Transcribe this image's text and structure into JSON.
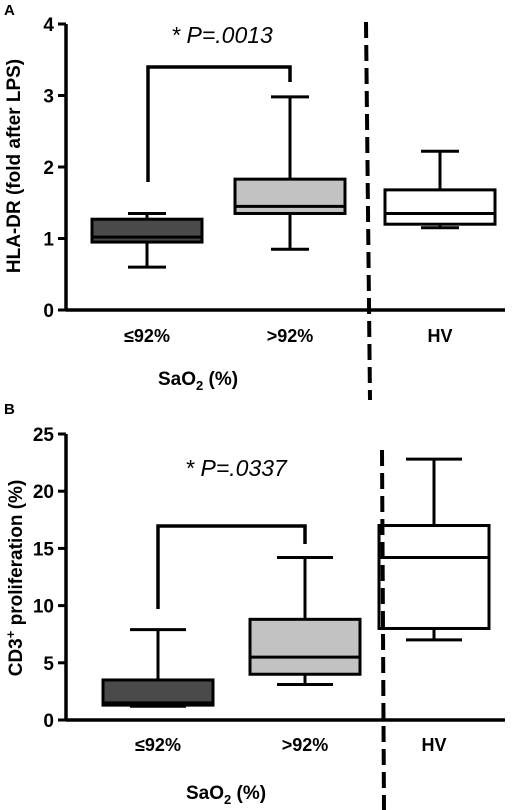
{
  "chart_data": [
    {
      "type": "box",
      "panel_label": "A",
      "ylabel": "HLA-DR (fold after LPS)",
      "xlabel": "SaO2 (%)",
      "ylim": [
        0,
        4
      ],
      "yticks": [
        "0",
        "1",
        "2",
        "3",
        "4"
      ],
      "categories": [
        "≤92%",
        ">92%",
        "HV"
      ],
      "annotation": "* P=.0013",
      "boxes": [
        {
          "category": "≤92%",
          "fill": "#4a4a4a",
          "min": 0.6,
          "q1": 0.95,
          "median": 1.02,
          "q3": 1.27,
          "max": 1.35
        },
        {
          "category": ">92%",
          "fill": "#c2c2c2",
          "min": 0.85,
          "q1": 1.35,
          "median": 1.45,
          "q3": 1.83,
          "max": 2.98
        },
        {
          "category": "HV",
          "fill": "#ffffff",
          "min": 1.15,
          "q1": 1.2,
          "median": 1.35,
          "q3": 1.68,
          "max": 2.22
        }
      ]
    },
    {
      "type": "box",
      "panel_label": "B",
      "ylabel": "CD3+ proliferation (%)",
      "xlabel": "SaO2 (%)",
      "ylim": [
        0,
        25
      ],
      "yticks": [
        "0",
        "5",
        "10",
        "15",
        "20",
        "25"
      ],
      "categories": [
        "≤92%",
        ">92%",
        "HV"
      ],
      "annotation": "* P=.0337",
      "boxes": [
        {
          "category": "≤92%",
          "fill": "#4a4a4a",
          "min": 1.2,
          "q1": 1.3,
          "median": 1.5,
          "q3": 3.5,
          "max": 7.9
        },
        {
          "category": ">92%",
          "fill": "#c2c2c2",
          "min": 3.1,
          "q1": 4.0,
          "median": 5.5,
          "q3": 8.8,
          "max": 14.2
        },
        {
          "category": "HV",
          "fill": "#ffffff",
          "min": 7.0,
          "q1": 8.0,
          "median": 14.2,
          "q3": 17.0,
          "max": 22.8
        }
      ]
    }
  ]
}
